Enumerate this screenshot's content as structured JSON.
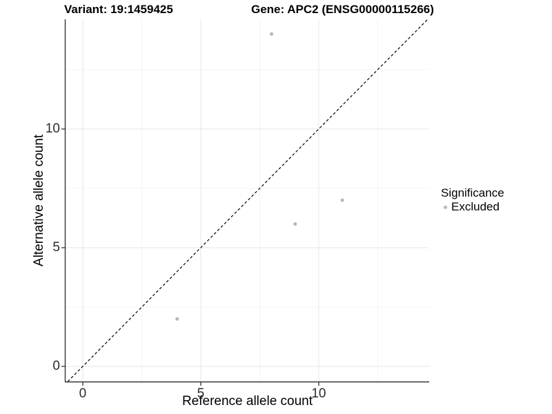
{
  "chart_data": {
    "type": "scatter",
    "titles": {
      "left": "Variant: 19:1459425",
      "right": "Gene: APC2 (ENSG00000115266)"
    },
    "xlabel": "Reference allele count",
    "ylabel": "Alternative allele count",
    "xlim": [
      -0.73,
      14.68
    ],
    "ylim": [
      -0.64,
      14.62
    ],
    "x_ticks": [
      0,
      5,
      10
    ],
    "y_ticks": [
      0,
      5,
      10
    ],
    "x_minor_ticks": [
      2.5,
      7.5,
      12.5
    ],
    "y_minor_ticks": [
      2.5,
      7.5,
      12.5
    ],
    "grid": true,
    "identity_line": {
      "equation": "y = x",
      "style": "dashed",
      "color": "#000000"
    },
    "series": [
      {
        "name": "Excluded",
        "color": "#b8b8b8",
        "points": [
          {
            "x": 8,
            "y": 14
          },
          {
            "x": 4,
            "y": 2
          },
          {
            "x": 9,
            "y": 6
          },
          {
            "x": 11,
            "y": 7
          }
        ]
      }
    ],
    "legend": {
      "title": "Significance",
      "position": "right",
      "items": [
        {
          "label": "Excluded",
          "color": "#b8b8b8"
        }
      ]
    }
  },
  "colors": {
    "background": "#ffffff",
    "grid_major": "#e9e9e9",
    "grid_minor": "#f4f4f4",
    "axis_line": "#333333",
    "tick_text": "#2b2b2b",
    "point": "#b8b8b8"
  }
}
